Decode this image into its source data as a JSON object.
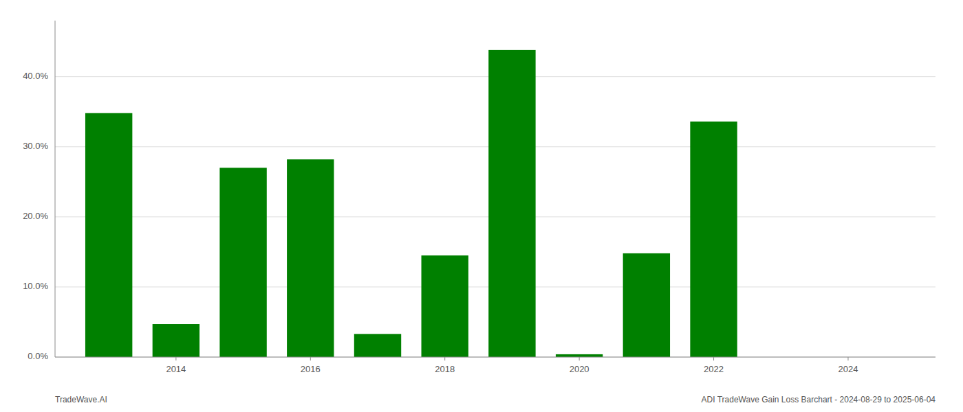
{
  "chart_data": {
    "type": "bar",
    "x": [
      2013,
      2014,
      2015,
      2016,
      2017,
      2018,
      2019,
      2020,
      2021,
      2022,
      2023,
      2024
    ],
    "values": [
      0.348,
      0.047,
      0.27,
      0.282,
      0.033,
      0.145,
      0.438,
      0.004,
      0.148,
      0.336,
      0.0,
      0.0
    ],
    "color": "#008000",
    "xlim": [
      2012.2,
      2025.3
    ],
    "xticks": [
      2014,
      2016,
      2018,
      2020,
      2022,
      2024
    ],
    "ylim": [
      0.0,
      0.48
    ],
    "yticks": [
      {
        "value": 0.0,
        "label": "0.0%"
      },
      {
        "value": 0.1,
        "label": "10.0%"
      },
      {
        "value": 0.2,
        "label": "20.0%"
      },
      {
        "value": 0.3,
        "label": "30.0%"
      },
      {
        "value": 0.4,
        "label": "40.0%"
      }
    ],
    "grid": true,
    "annotations": [
      "TradeWave.AI",
      "ADI TradeWave Gain Loss Barchart - 2024-08-29 to 2025-06-04"
    ]
  }
}
